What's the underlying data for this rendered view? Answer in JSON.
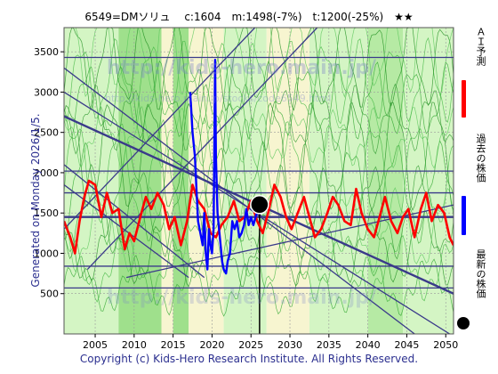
{
  "header": {
    "title": "6549=DMソリュ　 c:1604　m:1498(-7%)　t:1200(-25%)　★★"
  },
  "side": {
    "generated_label": "Generated on Monday 2026/1/5."
  },
  "footer": {
    "copyright": "Copyright (c) Kids-Hero Research Institute. All Rights Reserved."
  },
  "legend": {
    "ai_forecast": "ＡＩ予測",
    "past_price": "過去の株価",
    "latest_price": "最新の株価",
    "colors": {
      "ai_forecast": "#ff0000",
      "past_price": "#0000ff",
      "latest_price": "#000000"
    }
  },
  "watermarks": {
    "main": "http://kids-hero.main.jp/",
    "sub": "http://kids-hero.main.jp/stocks/code6549.html"
  },
  "chart_data": {
    "type": "line",
    "title": "6549=DMソリュ　 c:1604　m:1498(-7%)　t:1200(-25%)　★★",
    "xlim": [
      2001,
      2051
    ],
    "ylim": [
      0,
      3800
    ],
    "x_ticks": [
      2005,
      2010,
      2015,
      2020,
      2025,
      2030,
      2035,
      2040,
      2045,
      2050
    ],
    "y_ticks": [
      500,
      1000,
      1500,
      2000,
      2500,
      3000,
      3500
    ],
    "grid": true,
    "horizontal_levels": [
      570,
      840,
      1450,
      1750,
      2020,
      3430
    ],
    "trend_channels": [
      {
        "points": [
          [
            2001,
            3300
          ],
          [
            2046,
            0
          ]
        ]
      },
      {
        "points": [
          [
            2001,
            3000
          ],
          [
            2050.5,
            0
          ]
        ]
      },
      {
        "points": [
          [
            2001,
            2700
          ],
          [
            2051,
            500
          ]
        ]
      },
      {
        "points": [
          [
            2001,
            2100
          ],
          [
            2019,
            700
          ]
        ]
      },
      {
        "points": [
          [
            2001,
            1850
          ],
          [
            2017,
            700
          ]
        ]
      },
      {
        "points": [
          [
            2001,
            1300
          ],
          [
            2025.5,
            3800
          ]
        ]
      },
      {
        "points": [
          [
            2004,
            800
          ],
          [
            2033.5,
            3800
          ]
        ]
      },
      {
        "points": [
          [
            2009,
            700
          ],
          [
            2051,
            1600
          ]
        ]
      }
    ],
    "background_bands": [
      {
        "from": 2001,
        "to": 2008,
        "color": "#d4f5c4"
      },
      {
        "from": 2008,
        "to": 2013.5,
        "color": "#9fe08c"
      },
      {
        "from": 2013.5,
        "to": 2015,
        "color": "#f7f5d0"
      },
      {
        "from": 2015,
        "to": 2017,
        "color": "#9fe08c"
      },
      {
        "from": 2017,
        "to": 2021.5,
        "color": "#f7f5d0"
      },
      {
        "from": 2021.5,
        "to": 2027,
        "color": "#d4f5c4"
      },
      {
        "from": 2027,
        "to": 2032.5,
        "color": "#f7f5d0"
      },
      {
        "from": 2032.5,
        "to": 2040,
        "color": "#d4f5c4"
      },
      {
        "from": 2040,
        "to": 2044.5,
        "color": "#b6eaa4"
      },
      {
        "from": 2044.5,
        "to": 2051,
        "color": "#d4f5c4"
      }
    ],
    "series": [
      {
        "name": "ＡＩ予測",
        "color": "#ff0000",
        "x": [
          2001,
          2001.8,
          2002.4,
          2003,
          2003.6,
          2004.2,
          2005,
          2005.8,
          2006.5,
          2007.2,
          2008,
          2008.8,
          2009.4,
          2010,
          2010.8,
          2011.5,
          2012.2,
          2013,
          2013.8,
          2014.5,
          2015.2,
          2016,
          2016.8,
          2017.5,
          2018.2,
          2019,
          2019.8,
          2020.5,
          2021.2,
          2022,
          2022.8,
          2023.5,
          2024.2,
          2025,
          2025.8,
          2026.5,
          2027.2,
          2028,
          2028.8,
          2029.5,
          2030.2,
          2031,
          2031.8,
          2032.5,
          2033.2,
          2034,
          2034.8,
          2035.5,
          2036.2,
          2037,
          2037.8,
          2038.5,
          2039.2,
          2040,
          2040.8,
          2041.5,
          2042.2,
          2043,
          2043.8,
          2044.5,
          2045.2,
          2046,
          2046.8,
          2047.5,
          2048.2,
          2049,
          2049.8,
          2050.5,
          2051
        ],
        "y": [
          1400,
          1200,
          1000,
          1400,
          1700,
          1900,
          1850,
          1450,
          1750,
          1500,
          1550,
          1050,
          1250,
          1150,
          1450,
          1700,
          1550,
          1750,
          1600,
          1300,
          1450,
          1100,
          1400,
          1850,
          1650,
          1550,
          1250,
          1200,
          1350,
          1450,
          1650,
          1400,
          1450,
          1650,
          1400,
          1250,
          1500,
          1850,
          1700,
          1450,
          1300,
          1500,
          1700,
          1450,
          1200,
          1300,
          1500,
          1700,
          1600,
          1400,
          1350,
          1800,
          1500,
          1300,
          1200,
          1450,
          1700,
          1400,
          1250,
          1450,
          1550,
          1200,
          1550,
          1750,
          1400,
          1600,
          1500,
          1200,
          1100
        ]
      },
      {
        "name": "過去の株価",
        "color": "#0000ff",
        "x": [
          2017.2,
          2017.5,
          2017.8,
          2018.0,
          2018.2,
          2018.4,
          2018.6,
          2018.8,
          2019.0,
          2019.2,
          2019.4,
          2019.6,
          2019.8,
          2020.0,
          2020.2,
          2020.4,
          2020.5,
          2020.7,
          2020.9,
          2021.1,
          2021.3,
          2021.5,
          2021.8,
          2022.0,
          2022.3,
          2022.6,
          2022.9,
          2023.2,
          2023.5,
          2023.8,
          2024.1,
          2024.4,
          2024.7,
          2025.0,
          2025.3,
          2025.6,
          2026.0
        ],
        "y": [
          3000,
          2500,
          2200,
          1800,
          1400,
          1300,
          1200,
          1100,
          1500,
          1000,
          800,
          1300,
          1100,
          1000,
          1300,
          3400,
          2200,
          1500,
          1300,
          1100,
          900,
          800,
          750,
          900,
          1000,
          1400,
          1300,
          1400,
          1200,
          1250,
          1350,
          1550,
          1350,
          1450,
          1350,
          1450,
          1604
        ]
      }
    ],
    "latest_point": {
      "x": 2026.1,
      "y": 1604,
      "label": "最新の株価"
    }
  }
}
